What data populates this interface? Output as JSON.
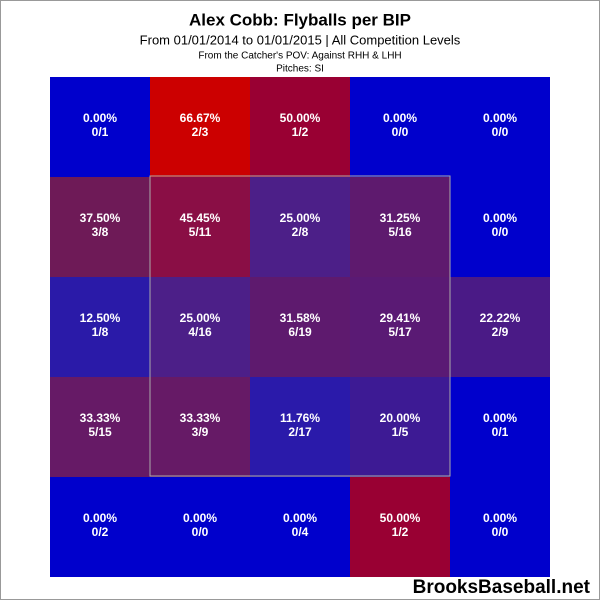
{
  "chart_data": {
    "type": "heatmap",
    "title": "Alex Cobb: Flyballs per BIP",
    "subtitle": "From 01/01/2014 to 01/01/2015 | All Competition Levels",
    "note": "From the Catcher's POV:  Against RHH & LHH",
    "pitches": "Pitches:  SI",
    "watermark": "BrooksBaseball.net",
    "rows": [
      {
        "values": [
          0,
          66.67,
          50,
          0,
          0
        ],
        "value_labels": [
          "0.00%",
          "66.67%",
          "50.00%",
          "0.00%",
          "0.00%"
        ],
        "counts": [
          "0/1",
          "2/3",
          "1/2",
          "0/0",
          "0/0"
        ],
        "colors": [
          "#0000cc",
          "#cc0000",
          "#990033",
          "#0000cc",
          "#0000cc"
        ]
      },
      {
        "values": [
          37.5,
          45.45,
          25,
          31.25,
          0
        ],
        "value_labels": [
          "37.50%",
          "45.45%",
          "25.00%",
          "31.25%",
          "0.00%"
        ],
        "counts": [
          "3/8",
          "5/11",
          "2/8",
          "5/16",
          "0/0"
        ],
        "colors": [
          "#6e1a57",
          "#8a0e45",
          "#4c1f88",
          "#5e1a6e",
          "#0000cc"
        ]
      },
      {
        "values": [
          12.5,
          25,
          31.58,
          29.41,
          22.22
        ],
        "value_labels": [
          "12.50%",
          "25.00%",
          "31.58%",
          "29.41%",
          "22.22%"
        ],
        "counts": [
          "1/8",
          "4/16",
          "6/19",
          "5/17",
          "2/9"
        ],
        "colors": [
          "#2a1aa8",
          "#4c1f88",
          "#5e1a6e",
          "#5a1a74",
          "#4a1a86"
        ]
      },
      {
        "values": [
          33.33,
          33.33,
          11.76,
          20,
          0
        ],
        "value_labels": [
          "33.33%",
          "33.33%",
          "11.76%",
          "20.00%",
          "0.00%"
        ],
        "counts": [
          "5/15",
          "3/9",
          "2/17",
          "1/5",
          "0/1"
        ],
        "colors": [
          "#661a66",
          "#661a66",
          "#2a1aaa",
          "#3d1a94",
          "#0000cc"
        ]
      },
      {
        "values": [
          0,
          0,
          0,
          50,
          0
        ],
        "value_labels": [
          "0.00%",
          "0.00%",
          "0.00%",
          "50.00%",
          "0.00%"
        ],
        "counts": [
          "0/2",
          "0/0",
          "0/4",
          "1/2",
          "0/0"
        ],
        "colors": [
          "#0000cc",
          "#0000cc",
          "#0000cc",
          "#990033",
          "#0000cc"
        ]
      }
    ]
  }
}
